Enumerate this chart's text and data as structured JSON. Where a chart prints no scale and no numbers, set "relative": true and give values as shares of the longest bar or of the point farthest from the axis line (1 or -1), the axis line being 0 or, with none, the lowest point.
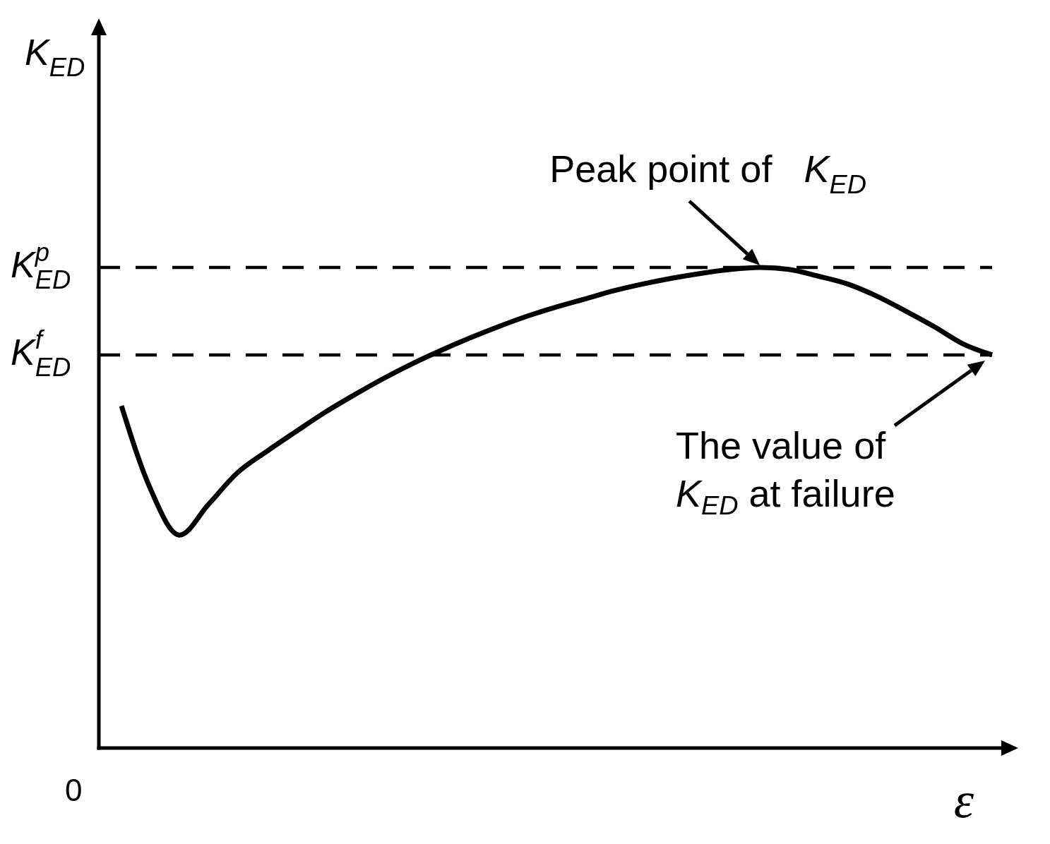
{
  "chart_data": {
    "type": "line",
    "relative": true,
    "xlabel": "ε",
    "categories": [
      null,
      null,
      null,
      null,
      null,
      null,
      null,
      null,
      null,
      null,
      null,
      null,
      null,
      null,
      null,
      null,
      null,
      null,
      null,
      null,
      null,
      null,
      null,
      null,
      null,
      null,
      null,
      null,
      null,
      null,
      null
    ],
    "values": [
      0.712,
      0.539,
      0.443,
      0.507,
      0.573,
      0.617,
      0.658,
      0.698,
      0.734,
      0.768,
      0.799,
      0.827,
      0.853,
      0.877,
      0.899,
      0.918,
      0.935,
      0.952,
      0.966,
      0.978,
      0.988,
      0.996,
      1,
      0.996,
      0.982,
      0.966,
      0.941,
      0.91,
      0.877,
      0.841,
      0.818
    ],
    "color": "#000000",
    "ref_lines": [
      {
        "axis": "y",
        "value": 1,
        "label": "K$_{ED}$$^{p}$",
        "line_style": "dashed",
        "color": "#000000"
      },
      {
        "axis": "y",
        "value": 0.818,
        "label": "K$_{ED}$$^{f}$",
        "line_style": "dashed",
        "color": "#000000"
      }
    ],
    "annotations": [
      {
        "text": "Peak point of K$_{ED}$",
        "y": 1
      },
      {
        "text": "The value of K$_{ED}$ at failure",
        "y": 0.818
      },
      "K$_{ED}$",
      "0"
    ]
  }
}
